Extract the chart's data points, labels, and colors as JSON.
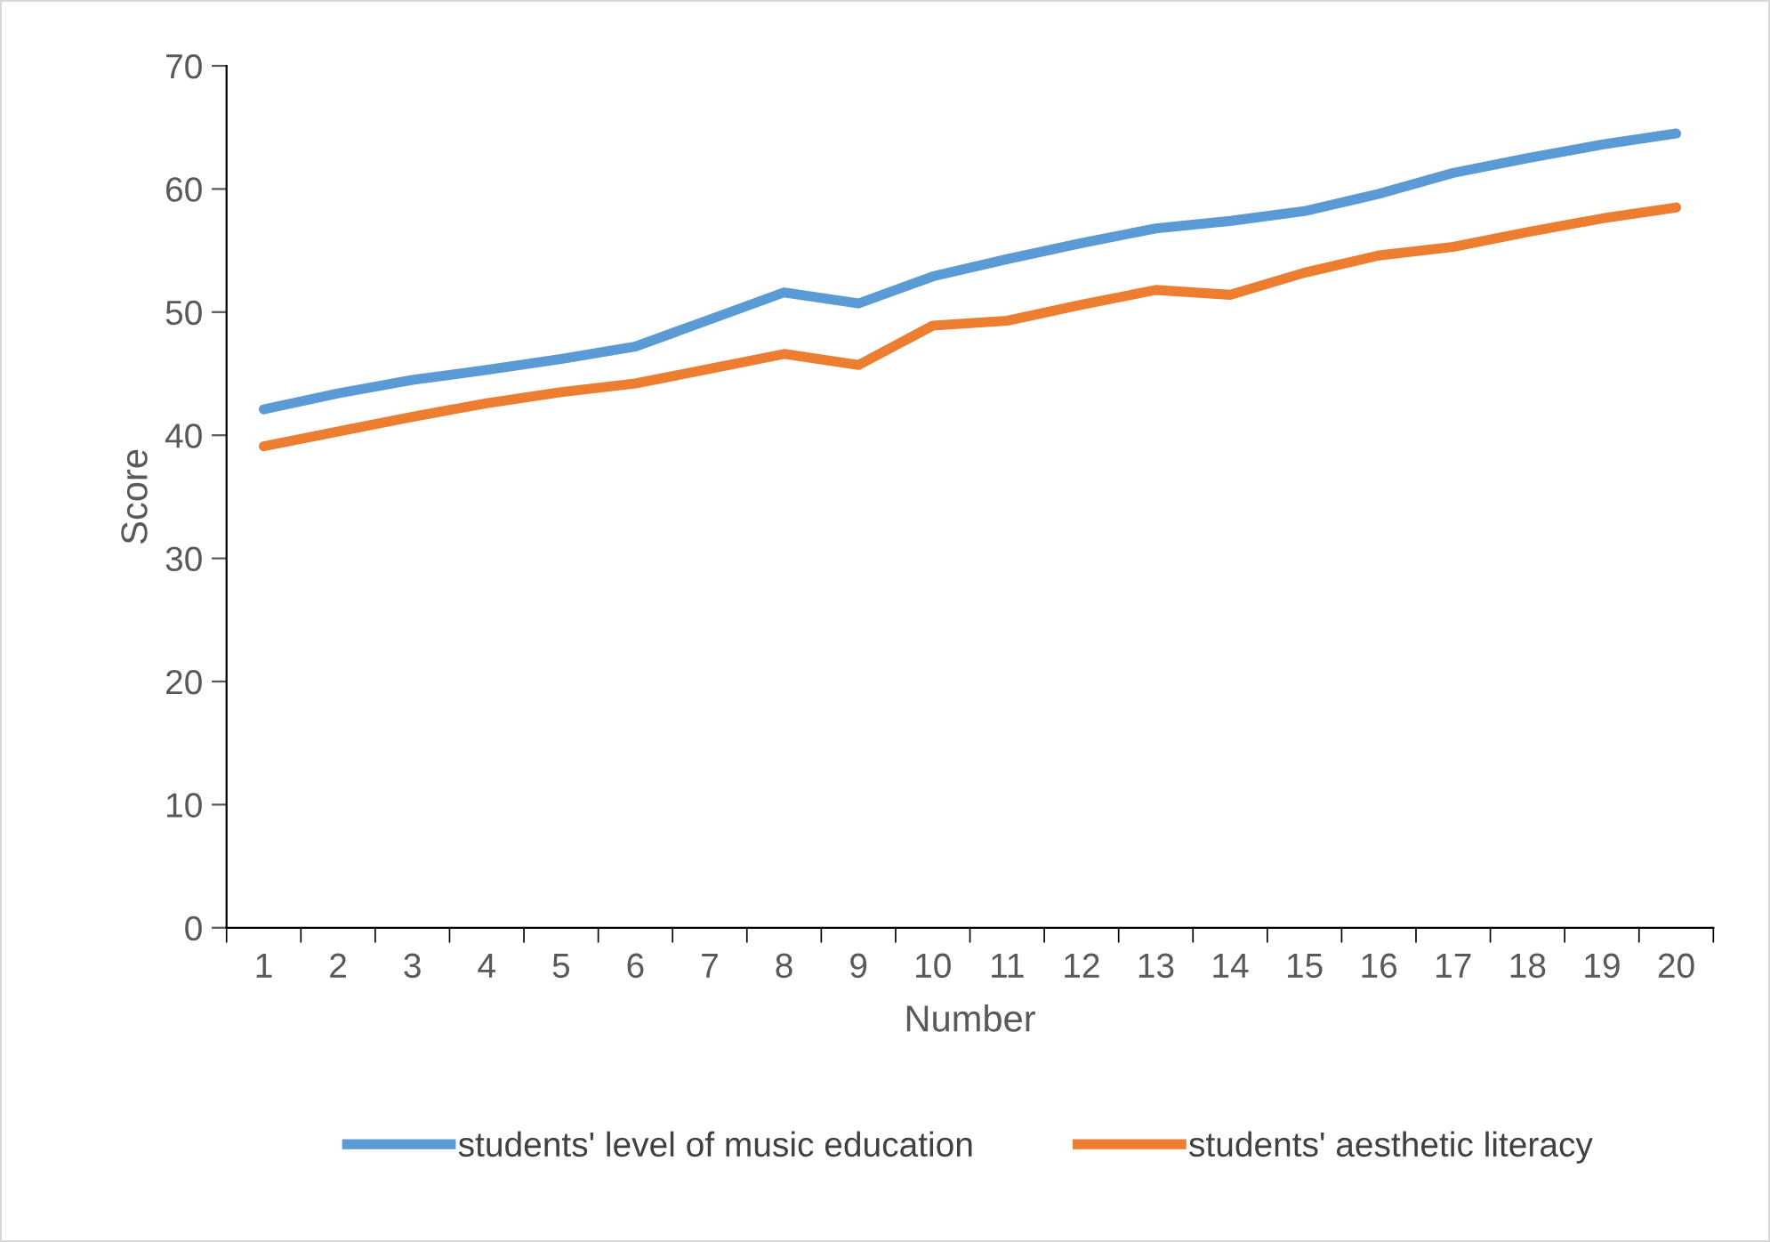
{
  "chart_data": {
    "type": "line",
    "xlabel": "Number",
    "ylabel": "Score",
    "categories": [
      "1",
      "2",
      "3",
      "4",
      "5",
      "6",
      "7",
      "8",
      "9",
      "10",
      "11",
      "12",
      "13",
      "14",
      "15",
      "16",
      "17",
      "18",
      "19",
      "20"
    ],
    "series": [
      {
        "name": "students' level of music education",
        "color": "#5b9bd5",
        "values": [
          42.1,
          43.4,
          44.5,
          45.3,
          46.2,
          47.2,
          49.4,
          51.6,
          50.7,
          52.9,
          54.3,
          55.6,
          56.8,
          57.4,
          58.2,
          59.6,
          61.3,
          62.5,
          63.6,
          64.5
        ]
      },
      {
        "name": "students' aesthetic literacy",
        "color": "#ed7d31",
        "values": [
          39.1,
          40.3,
          41.5,
          42.6,
          43.5,
          44.2,
          45.4,
          46.6,
          45.7,
          48.9,
          49.3,
          50.6,
          51.8,
          51.4,
          53.2,
          54.6,
          55.3,
          56.5,
          57.6,
          58.5
        ]
      }
    ],
    "ylim": [
      0,
      70
    ],
    "yticks": [
      0,
      10,
      20,
      30,
      40,
      50,
      60,
      70
    ],
    "grid": false,
    "legend": "bottom",
    "marker": "none",
    "line_style": "solid"
  }
}
